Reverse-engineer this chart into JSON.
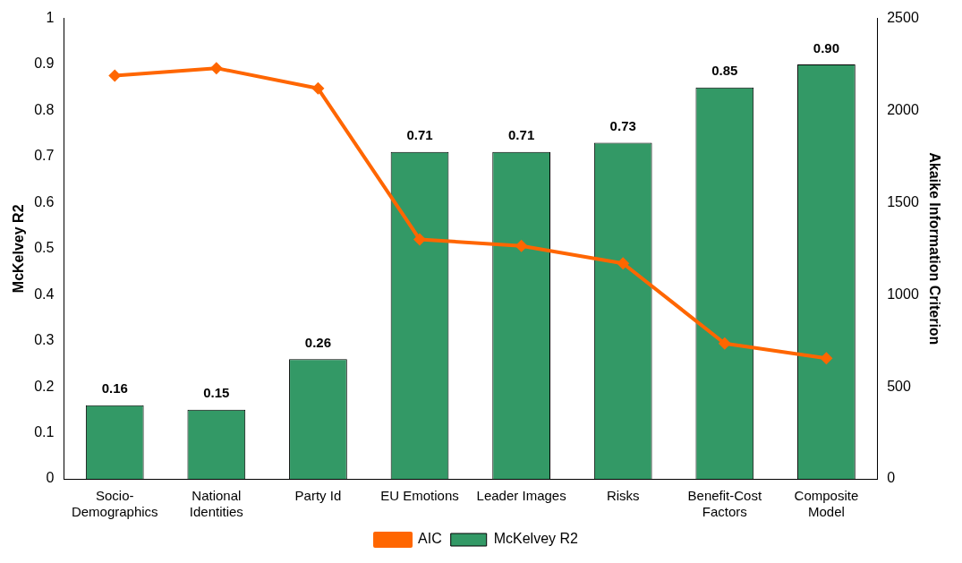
{
  "chart_data": {
    "type": "bar",
    "ylabel": "McKelvey R2",
    "y2label": "Akaike Information Criterion",
    "categories": [
      "Socio-\nDemographics",
      "National\nIdentities",
      "Party Id",
      "EU Emotions",
      "Leader Images",
      "Risks",
      "Benefit-Cost\nFactors",
      "Composite\nModel"
    ],
    "series": [
      {
        "name": "McKelvey R2",
        "color": "#339966",
        "values": [
          0.16,
          0.15,
          0.26,
          0.71,
          0.71,
          0.73,
          0.85,
          0.9
        ],
        "value_labels": [
          "0.16",
          "0.15",
          "0.26",
          "0.71",
          "0.71",
          "0.73",
          "0.85",
          "0.90"
        ]
      },
      {
        "name": "AIC",
        "type": "line",
        "axis": "y2",
        "color": "#ff6600",
        "marker": "diamond",
        "values": [
          2190,
          2230,
          2120,
          1300,
          1265,
          1170,
          735,
          655
        ]
      }
    ],
    "ylim": [
      0,
      1
    ],
    "yticks": [
      0,
      0.1,
      0.2,
      0.3,
      0.4,
      0.5,
      0.6,
      0.7,
      0.8,
      0.9,
      1
    ],
    "y2lim": [
      0,
      2500
    ],
    "y2ticks": [
      0,
      500,
      1000,
      1500,
      2000,
      2500
    ],
    "grid": false,
    "legend": "bottom"
  }
}
